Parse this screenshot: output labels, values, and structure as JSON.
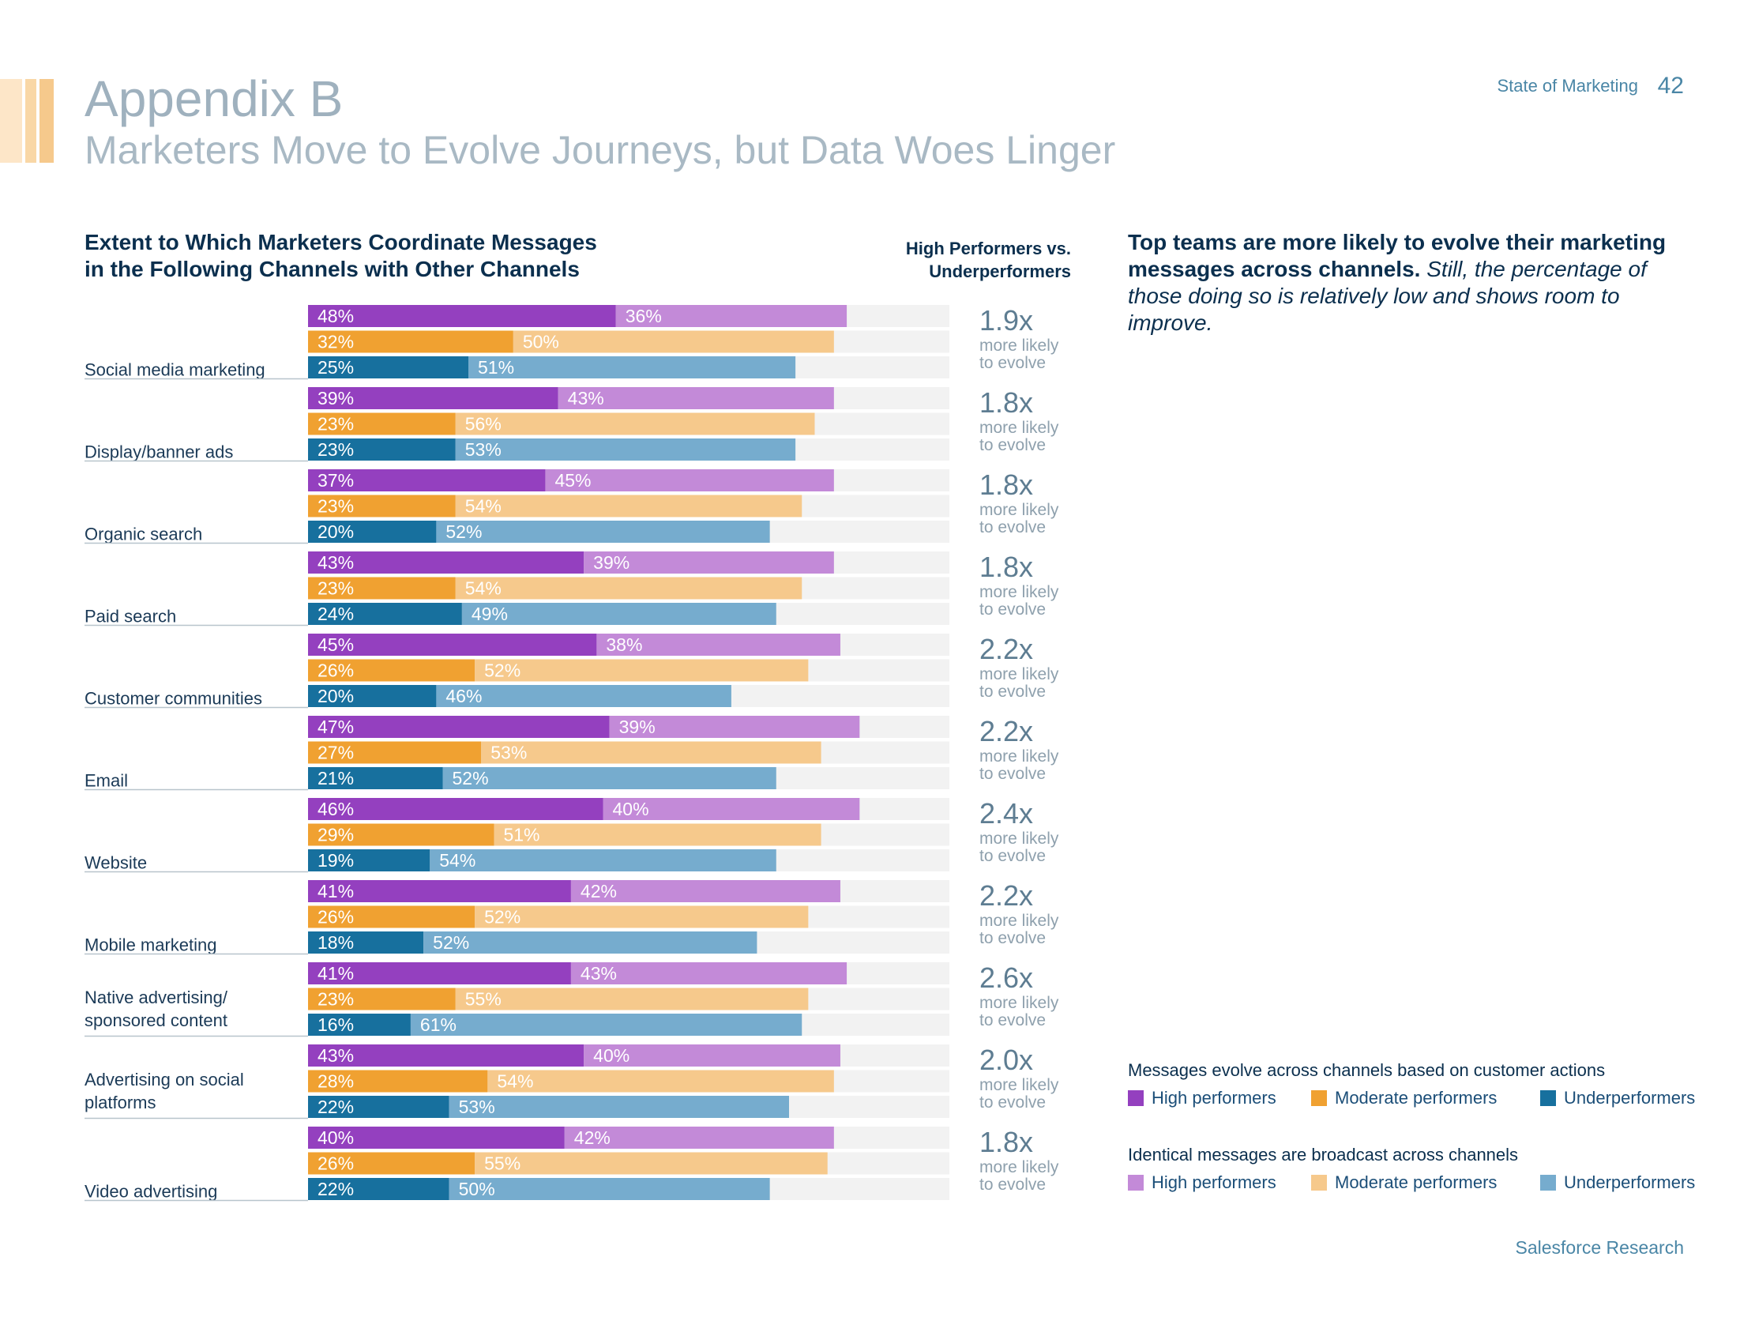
{
  "header": {
    "title": "Appendix B",
    "subtitle": "Marketers Move to Evolve Journeys, but Data Woes Linger",
    "report_name": "State of Marketing",
    "page_number": "42"
  },
  "chart_header": {
    "title_line1": "Extent to Which Marketers Coordinate Messages",
    "title_line2": "in the Following Channels with Other Channels",
    "comparison_line1": "High Performers vs.",
    "comparison_line2": "Underperformers"
  },
  "insight": {
    "bold": "Top teams are more likely to evolve their marketing messages across channels.",
    "italic": "Still, the percentage of those doing so is relatively low and shows room to improve."
  },
  "legend": {
    "group1_title": "Messages evolve across channels based on customer actions",
    "group2_title": "Identical messages are broadcast across channels",
    "high": "High performers",
    "moderate": "Moderate performers",
    "under": "Underperformers"
  },
  "footer": {
    "source": "Salesforce Research"
  },
  "colors": {
    "high_evolve": "#9440bf",
    "high_identical": "#c38ad8",
    "moderate_evolve": "#f0a131",
    "moderate_identical": "#f6c98c",
    "under_evolve": "#17709e",
    "under_identical": "#76acce",
    "track": "#f2f2f2",
    "accent_deco": "#f6c98c"
  },
  "chart_data": {
    "type": "bar",
    "orientation": "horizontal",
    "stacked": true,
    "xlim": [
      0,
      100
    ],
    "multiplier_suffix": "more likely to evolve",
    "multiplier_line1": "more likely",
    "multiplier_line2": "to evolve",
    "categories": [
      {
        "label": "Social media marketing",
        "multiplier": "1.9x",
        "high": [
          48,
          36
        ],
        "moderate": [
          32,
          50
        ],
        "under": [
          25,
          51
        ]
      },
      {
        "label": "Display/banner ads",
        "multiplier": "1.8x",
        "high": [
          39,
          43
        ],
        "moderate": [
          23,
          56
        ],
        "under": [
          23,
          53
        ]
      },
      {
        "label": "Organic search",
        "multiplier": "1.8x",
        "high": [
          37,
          45
        ],
        "moderate": [
          23,
          54
        ],
        "under": [
          20,
          52
        ]
      },
      {
        "label": "Paid search",
        "multiplier": "1.8x",
        "high": [
          43,
          39
        ],
        "moderate": [
          23,
          54
        ],
        "under": [
          24,
          49
        ]
      },
      {
        "label": "Customer communities",
        "multiplier": "2.2x",
        "high": [
          45,
          38
        ],
        "moderate": [
          26,
          52
        ],
        "under": [
          20,
          46
        ]
      },
      {
        "label": "Email",
        "multiplier": "2.2x",
        "high": [
          47,
          39
        ],
        "moderate": [
          27,
          53
        ],
        "under": [
          21,
          52
        ]
      },
      {
        "label": "Website",
        "multiplier": "2.4x",
        "high": [
          46,
          40
        ],
        "moderate": [
          29,
          51
        ],
        "under": [
          19,
          54
        ]
      },
      {
        "label": "Mobile marketing",
        "multiplier": "2.2x",
        "high": [
          41,
          42
        ],
        "moderate": [
          26,
          52
        ],
        "under": [
          18,
          52
        ]
      },
      {
        "label": "Native advertising/ sponsored content",
        "label_lines": [
          "Native advertising/",
          "sponsored content"
        ],
        "multiplier": "2.6x",
        "high": [
          41,
          43
        ],
        "moderate": [
          23,
          55
        ],
        "under": [
          16,
          61
        ]
      },
      {
        "label": "Advertising on social platforms",
        "label_lines": [
          "Advertising on social",
          "platforms"
        ],
        "multiplier": "2.0x",
        "high": [
          43,
          40
        ],
        "moderate": [
          28,
          54
        ],
        "under": [
          22,
          53
        ]
      },
      {
        "label": "Video advertising",
        "multiplier": "1.8x",
        "high": [
          40,
          42
        ],
        "moderate": [
          26,
          55
        ],
        "under": [
          22,
          50
        ]
      }
    ]
  }
}
